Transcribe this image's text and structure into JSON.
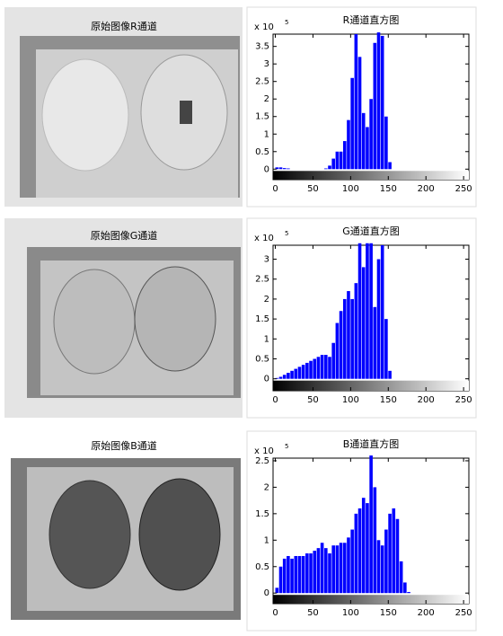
{
  "images": [
    {
      "title": "原始图像R通道"
    },
    {
      "title": "原始图像G通道"
    },
    {
      "title": "原始图像B通道"
    }
  ],
  "chart_data": [
    {
      "type": "histogram",
      "title": "R通道直方图",
      "y_multiplier": "x 10",
      "y_exponent": "5",
      "color": "#0000ff",
      "bins": [
        0,
        5,
        10,
        15,
        20,
        25,
        30,
        35,
        40,
        45,
        50,
        55,
        60,
        65,
        70,
        75,
        80,
        85,
        90,
        95,
        100,
        105,
        110,
        115,
        120,
        125,
        130,
        135,
        140,
        145,
        150,
        155,
        160,
        165,
        170,
        175,
        180
      ],
      "values": [
        0.05,
        0.05,
        0.03,
        0.02,
        0,
        0,
        0,
        0,
        0,
        0,
        0,
        0,
        0,
        0.02,
        0.1,
        0.3,
        0.5,
        0.5,
        0.8,
        1.4,
        2.6,
        3.85,
        3.2,
        1.6,
        1.2,
        2.0,
        3.6,
        3.9,
        3.8,
        1.5,
        0.2,
        0,
        0,
        0,
        0,
        0
      ],
      "xlim": [
        -3,
        257
      ],
      "ylim": [
        -0.3,
        3.85
      ],
      "xticks": [
        0,
        50,
        100,
        150,
        200,
        250
      ],
      "yticks": [
        0,
        0.5,
        1,
        1.5,
        2,
        2.5,
        3,
        3.5
      ]
    },
    {
      "type": "histogram",
      "title": "G通道直方图",
      "y_multiplier": "x 10",
      "y_exponent": "5",
      "color": "#0000ff",
      "bins": [
        0,
        5,
        10,
        15,
        20,
        25,
        30,
        35,
        40,
        45,
        50,
        55,
        60,
        65,
        70,
        75,
        80,
        85,
        90,
        95,
        100,
        105,
        110,
        115,
        120,
        125,
        130,
        135,
        140,
        145,
        150,
        155,
        160,
        165,
        170,
        175,
        180
      ],
      "values": [
        0.02,
        0.05,
        0.1,
        0.15,
        0.2,
        0.25,
        0.3,
        0.35,
        0.4,
        0.45,
        0.5,
        0.55,
        0.6,
        0.6,
        0.55,
        0.9,
        1.4,
        1.7,
        2.0,
        2.2,
        2.0,
        2.4,
        3.4,
        2.8,
        3.4,
        3.4,
        1.8,
        3.0,
        3.35,
        1.5,
        0.2,
        0,
        0,
        0,
        0,
        0
      ],
      "xlim": [
        -3,
        257
      ],
      "ylim": [
        -0.3,
        3.35
      ],
      "xticks": [
        0,
        50,
        100,
        150,
        200,
        250
      ],
      "yticks": [
        0,
        0.5,
        1,
        1.5,
        2,
        2.5,
        3
      ]
    },
    {
      "type": "histogram",
      "title": "B通道直方图",
      "y_multiplier": "x 10",
      "y_exponent": "5",
      "color": "#0000ff",
      "bins": [
        0,
        5,
        10,
        15,
        20,
        25,
        30,
        35,
        40,
        45,
        50,
        55,
        60,
        65,
        70,
        75,
        80,
        85,
        90,
        95,
        100,
        105,
        110,
        115,
        120,
        125,
        130,
        135,
        140,
        145,
        150,
        155,
        160,
        165,
        170,
        175,
        180
      ],
      "values": [
        0.1,
        0.5,
        0.65,
        0.7,
        0.65,
        0.7,
        0.7,
        0.7,
        0.75,
        0.75,
        0.8,
        0.85,
        0.95,
        0.85,
        0.75,
        0.9,
        0.9,
        0.95,
        0.95,
        1.05,
        1.2,
        1.5,
        1.6,
        1.8,
        1.7,
        2.6,
        2.0,
        1.0,
        0.9,
        1.2,
        1.5,
        1.6,
        1.4,
        0.6,
        0.2,
        0.02
      ],
      "xlim": [
        -3,
        257
      ],
      "ylim": [
        -0.2,
        2.55
      ],
      "xticks": [
        0,
        50,
        100,
        150,
        200,
        250
      ],
      "yticks": [
        0,
        0.5,
        1,
        1.5,
        2,
        2.5
      ]
    }
  ]
}
